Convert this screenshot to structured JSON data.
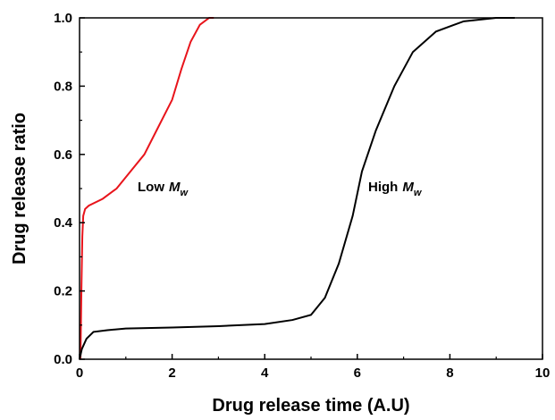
{
  "chart_data": {
    "type": "line",
    "x_label": "Drug release time (A.U)",
    "y_label": "Drug release ratio",
    "xlim": [
      0,
      10
    ],
    "xticks": [
      0,
      2,
      4,
      6,
      8,
      10
    ],
    "ylim": [
      0,
      1
    ],
    "yticks": [
      {
        "value": 0,
        "label": "0.0"
      },
      0.2,
      0.4,
      0.6,
      0.8,
      {
        "value": 1,
        "label": "1.0"
      }
    ],
    "series": [
      {
        "color": "#e8141b",
        "x": [
          0.02,
          0.04,
          0.06,
          0.08,
          0.12,
          0.2,
          0.5,
          0.8,
          1.1,
          1.4,
          1.7,
          2.0,
          2.2,
          2.4,
          2.6,
          2.8,
          2.9
        ],
        "values": [
          0.0,
          0.2,
          0.36,
          0.42,
          0.44,
          0.45,
          0.47,
          0.5,
          0.55,
          0.6,
          0.68,
          0.76,
          0.85,
          0.93,
          0.98,
          1.0,
          1.0
        ]
      },
      {
        "color": "#000000",
        "x": [
          0,
          0.05,
          0.15,
          0.3,
          0.6,
          1,
          2,
          3,
          4,
          4.6,
          5.0,
          5.3,
          5.6,
          5.9,
          6.1,
          6.4,
          6.8,
          7.2,
          7.7,
          8.3,
          9.0,
          9.4
        ],
        "values": [
          0.0,
          0.03,
          0.06,
          0.08,
          0.085,
          0.09,
          0.093,
          0.097,
          0.103,
          0.115,
          0.13,
          0.18,
          0.28,
          0.42,
          0.55,
          0.67,
          0.8,
          0.9,
          0.96,
          0.99,
          1.0,
          1.0
        ]
      }
    ],
    "annotations": [
      {
        "text": "Low",
        "symbol": "M",
        "subscript": "w"
      },
      {
        "text": "High",
        "symbol": "M",
        "subscript": "w"
      }
    ]
  }
}
